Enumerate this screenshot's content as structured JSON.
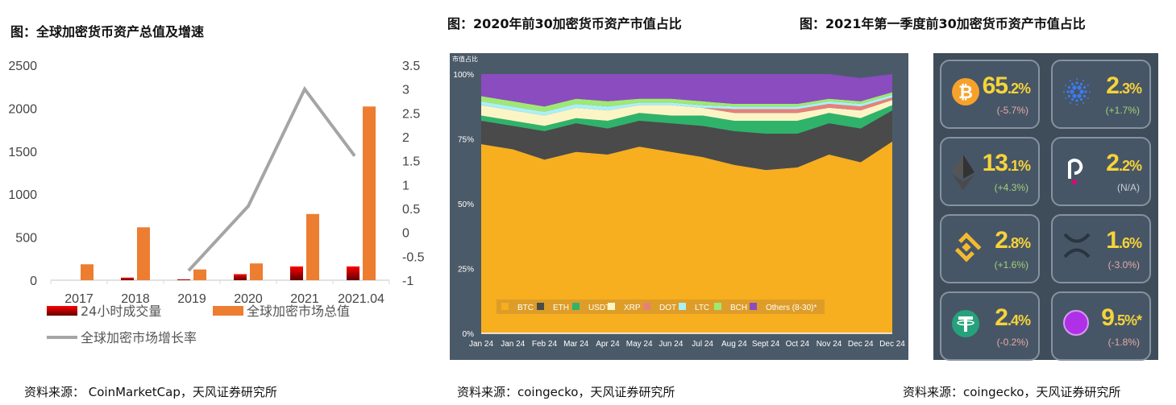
{
  "titles": {
    "left": "图：全球加密货币资产总值及增速",
    "middle": "图：2020年前30加密货币资产市值占比",
    "right": "图：2021年第一季度前30加密货币资产市值占比"
  },
  "sources": {
    "left": "资料来源： CoinMarketCap，天风证券研究所",
    "middle": "资料来源：coingecko，天风证券研究所",
    "right": "资料来源：coingecko，天风证券研究所"
  },
  "chart_data": [
    {
      "type": "bar+line",
      "categories": [
        "2017",
        "2018",
        "2019",
        "2020",
        "2021",
        "2021.04"
      ],
      "y_left": {
        "range": [
          0,
          2500
        ],
        "ticks": [
          "0",
          "500",
          "1000",
          "1500",
          "2000",
          "2500"
        ]
      },
      "y_right": {
        "range": [
          -1,
          3.5
        ],
        "ticks": [
          "-1",
          "-0.5",
          "0",
          "0.5",
          "1",
          "1.5",
          "2",
          "2.5",
          "3",
          "3.5"
        ]
      },
      "series": [
        {
          "name": "24小时成交量",
          "type": "bar",
          "axis": "left",
          "color": "#c00000",
          "values": [
            0,
            30,
            10,
            70,
            160,
            160
          ]
        },
        {
          "name": "全球加密市场总值",
          "type": "bar",
          "axis": "left",
          "color": "#ed7d31",
          "values": [
            185,
            615,
            125,
            195,
            770,
            2020
          ]
        },
        {
          "name": "全球加密市场增长率",
          "type": "line",
          "axis": "right",
          "color": "#a5a5a5",
          "values": [
            null,
            null,
            -0.8,
            0.55,
            3.0,
            1.6
          ]
        }
      ],
      "legend": "bottom",
      "grid": false
    },
    {
      "type": "area",
      "stacked": true,
      "ylabel": "市值占比",
      "y_ticks": [
        "0%",
        "25%",
        "50%",
        "75%",
        "100%"
      ],
      "ylim": [
        0,
        100
      ],
      "x": [
        "Jan 24",
        "Jan 24",
        "Feb 24",
        "Mar 24",
        "Apr 24",
        "May 24",
        "Jun 24",
        "Jul 24",
        "Aug 24",
        "Sept 24",
        "Oct 24",
        "Nov 24",
        "Dec 24",
        "Dec 24"
      ],
      "series": [
        {
          "name": "BTC",
          "color": "#f7ae1f",
          "values": [
            73,
            71,
            67,
            70,
            69,
            72,
            70,
            68,
            65,
            63,
            64,
            69,
            66,
            74
          ]
        },
        {
          "name": "ETH",
          "color": "#4a4a4a",
          "values": [
            9,
            9,
            11,
            11,
            10,
            10,
            11,
            12,
            13,
            14,
            13,
            12,
            13,
            12
          ]
        },
        {
          "name": "USDT",
          "color": "#2fb36b",
          "values": [
            2,
            2,
            2,
            2,
            3,
            3,
            3,
            4,
            4,
            5,
            5,
            4,
            4,
            2
          ]
        },
        {
          "name": "XRP",
          "color": "#fbf5c6",
          "values": [
            4,
            4,
            4,
            4,
            4,
            3,
            4,
            3,
            3,
            3,
            3,
            2,
            3,
            2
          ]
        },
        {
          "name": "DOT",
          "color": "#e8807a",
          "values": [
            0,
            0,
            0,
            0,
            0,
            0,
            0,
            0,
            1.5,
            1.5,
            1.5,
            1.5,
            1.5,
            1
          ]
        },
        {
          "name": "LTC",
          "color": "#aaf0f5",
          "values": [
            1.5,
            1.5,
            1.5,
            1.5,
            1.5,
            1,
            1,
            1,
            1,
            1,
            1,
            1,
            1,
            1
          ]
        },
        {
          "name": "BCH",
          "color": "#a0e873",
          "values": [
            2,
            2,
            2,
            2,
            2,
            1.5,
            1.5,
            1.5,
            1,
            1,
            1,
            1,
            1,
            1
          ]
        },
        {
          "name": "Others (8-30)*",
          "color": "#8a4cbf",
          "values": [
            8.5,
            10.5,
            12.5,
            9.5,
            10.5,
            9.5,
            9.5,
            10.5,
            11.5,
            11.5,
            11.5,
            9.5,
            9,
            7
          ]
        }
      ],
      "legend": "bottom-inside",
      "background": "#4b5a69"
    }
  ],
  "cards": [
    {
      "coin": "bitcoin-icon",
      "main": "65",
      "dec": ".2%",
      "change": "(-5.7%)",
      "trend": "down",
      "color": "#f7a12b"
    },
    {
      "coin": "cardano-icon",
      "main": "2",
      "dec": ".3%",
      "change": "(+1.7%)",
      "trend": "up",
      "color": "#3c7bf0"
    },
    {
      "coin": "ethereum-icon",
      "main": "13",
      "dec": ".1%",
      "change": "(+4.3%)",
      "trend": "up",
      "color": "#333333"
    },
    {
      "coin": "polkadot-icon",
      "main": "2",
      "dec": ".2%",
      "change": "(N/A)",
      "trend": "na",
      "color": "#e6007a"
    },
    {
      "coin": "binance-icon",
      "main": "2",
      "dec": ".8%",
      "change": "(+1.6%)",
      "trend": "up",
      "color": "#f3ba2f"
    },
    {
      "coin": "xrp-icon",
      "main": "1",
      "dec": ".6%",
      "change": "(-3.0%)",
      "trend": "down",
      "color": "#2a3540"
    },
    {
      "coin": "tether-icon",
      "main": "2",
      "dec": ".4%",
      "change": "(-0.2%)",
      "trend": "down",
      "color": "#26a17b"
    },
    {
      "coin": "others-icon",
      "main": "9",
      "dec": ".5%*",
      "change": "(-1.8%)",
      "trend": "down",
      "color": "#b030e8"
    }
  ],
  "trend_colors": {
    "up": "#9fd27a",
    "down": "#e6a9a9",
    "na": "#c9ced3"
  }
}
